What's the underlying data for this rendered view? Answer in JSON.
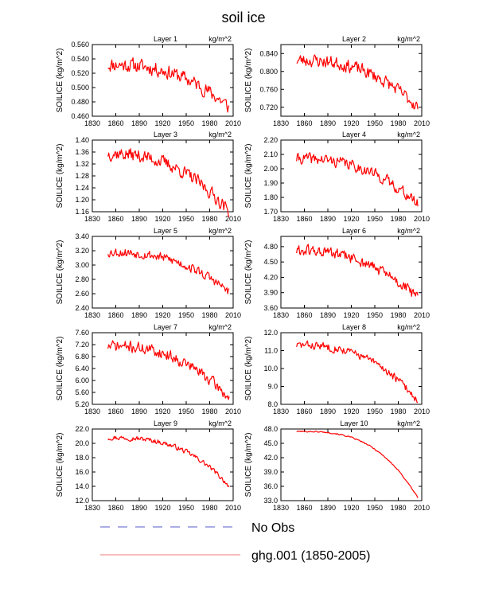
{
  "title": "soil ice",
  "colors": {
    "model": "#ff0000",
    "obs": "#5a5acd",
    "legend_model": "#f4a6a6",
    "axis": "#000000"
  },
  "legend": {
    "obs_label": "No Obs",
    "model_label": "ghg.001 (1850-2005)"
  },
  "chart_data": [
    {
      "type": "line",
      "panel": "Layer 1",
      "title": "Layer 1",
      "units": "kg/m^2",
      "ylabel": "SOILICE (kg/m^2)",
      "xlim": [
        1830,
        2010
      ],
      "xticks": [
        "1830",
        "1860",
        "1890",
        "1920",
        "1950",
        "1980",
        "2010"
      ],
      "ylim": [
        0.46,
        0.56
      ],
      "yticks": [
        "0.460",
        "0.480",
        "0.500",
        "0.520",
        "0.540",
        "0.560"
      ],
      "start": 0.532,
      "end": 0.472,
      "noise": 0.009,
      "curve": 2.5,
      "seed": 11
    },
    {
      "type": "line",
      "panel": "Layer 2",
      "title": "Layer 2",
      "units": "kg/m^2",
      "ylabel": "SOILICE (kg/m^2)",
      "xlim": [
        1830,
        2010
      ],
      "xticks": [
        "1830",
        "1860",
        "1890",
        "1920",
        "1950",
        "1980",
        "2010"
      ],
      "ylim": [
        0.7,
        0.86
      ],
      "yticks": [
        "0.720",
        "0.760",
        "0.800",
        "0.840"
      ],
      "start": 0.825,
      "end": 0.72,
      "noise": 0.013,
      "curve": 2.5,
      "seed": 23
    },
    {
      "type": "line",
      "panel": "Layer 3",
      "title": "Layer 3",
      "units": "kg/m^2",
      "ylabel": "SOILICE (kg/m^2)",
      "xlim": [
        1830,
        2010
      ],
      "xticks": [
        "1830",
        "1860",
        "1890",
        "1920",
        "1950",
        "1980",
        "2010"
      ],
      "ylim": [
        1.16,
        1.4
      ],
      "yticks": [
        "1.16",
        "1.20",
        "1.24",
        "1.28",
        "1.32",
        "1.36",
        "1.40"
      ],
      "start": 1.355,
      "end": 1.16,
      "noise": 0.02,
      "curve": 2.4,
      "seed": 37
    },
    {
      "type": "line",
      "panel": "Layer 4",
      "title": "Layer 4",
      "units": "kg/m^2",
      "ylabel": "SOILICE (kg/m^2)",
      "xlim": [
        1830,
        2010
      ],
      "xticks": [
        "1830",
        "1860",
        "1890",
        "1920",
        "1950",
        "1980",
        "2010"
      ],
      "ylim": [
        1.7,
        2.2
      ],
      "yticks": [
        "1.70",
        "1.80",
        "1.90",
        "2.00",
        "2.10",
        "2.20"
      ],
      "start": 2.07,
      "end": 1.75,
      "noise": 0.035,
      "curve": 2.5,
      "seed": 41
    },
    {
      "type": "line",
      "panel": "Layer 5",
      "title": "Layer 5",
      "units": "kg/m^2",
      "ylabel": "SOILICE (kg/m^2)",
      "xlim": [
        1830,
        2010
      ],
      "xticks": [
        "1830",
        "1860",
        "1890",
        "1920",
        "1950",
        "1980",
        "2010"
      ],
      "ylim": [
        2.4,
        3.4
      ],
      "yticks": [
        "2.40",
        "2.60",
        "2.80",
        "3.00",
        "3.20",
        "3.40"
      ],
      "start": 3.18,
      "end": 2.62,
      "noise": 0.06,
      "curve": 2.5,
      "seed": 53
    },
    {
      "type": "line",
      "panel": "Layer 6",
      "title": "Layer 6",
      "units": "kg/m^2",
      "ylabel": "SOILICE (kg/m^2)",
      "xlim": [
        1830,
        2010
      ],
      "xticks": [
        "1830",
        "1860",
        "1890",
        "1920",
        "1950",
        "1980",
        "2010"
      ],
      "ylim": [
        3.6,
        5.0
      ],
      "yticks": [
        "3.60",
        "3.90",
        "4.20",
        "4.50",
        "4.80"
      ],
      "start": 4.72,
      "end": 3.8,
      "noise": 0.1,
      "curve": 2.3,
      "seed": 61
    },
    {
      "type": "line",
      "panel": "Layer 7",
      "title": "Layer 7",
      "units": "kg/m^2",
      "ylabel": "SOILICE (kg/m^2)",
      "xlim": [
        1830,
        2010
      ],
      "xticks": [
        "1830",
        "1860",
        "1890",
        "1920",
        "1950",
        "1980",
        "2010"
      ],
      "ylim": [
        5.2,
        7.6
      ],
      "yticks": [
        "5.20",
        "5.60",
        "6.00",
        "6.40",
        "6.80",
        "7.20",
        "7.60"
      ],
      "start": 7.15,
      "end": 5.4,
      "noise": 0.17,
      "curve": 2.5,
      "seed": 71
    },
    {
      "type": "line",
      "panel": "Layer 8",
      "title": "Layer 8",
      "units": "kg/m^2",
      "ylabel": "SOILICE (kg/m^2)",
      "xlim": [
        1830,
        2010
      ],
      "xticks": [
        "1830",
        "1860",
        "1890",
        "1920",
        "1950",
        "1980",
        "2010"
      ],
      "ylim": [
        8.0,
        12.0
      ],
      "yticks": [
        "8.0",
        "9.0",
        "10.0",
        "11.0",
        "12.0"
      ],
      "start": 11.3,
      "end": 8.2,
      "noise": 0.2,
      "curve": 2.6,
      "seed": 83
    },
    {
      "type": "line",
      "panel": "Layer 9",
      "title": "Layer 9",
      "units": "kg/m^2",
      "ylabel": "SOILICE (kg/m^2)",
      "xlim": [
        1830,
        2010
      ],
      "xticks": [
        "1830",
        "1860",
        "1890",
        "1920",
        "1950",
        "1980",
        "2010"
      ],
      "ylim": [
        12.0,
        22.0
      ],
      "yticks": [
        "12.0",
        "14.0",
        "16.0",
        "18.0",
        "20.0",
        "22.0"
      ],
      "start": 20.8,
      "end": 14.0,
      "noise": 0.3,
      "curve": 2.8,
      "seed": 97
    },
    {
      "type": "line",
      "panel": "Layer 10",
      "title": "Layer 10",
      "units": "kg/m^2",
      "ylabel": "SOILICE (kg/m^2)",
      "xlim": [
        1830,
        2010
      ],
      "xticks": [
        "1830",
        "1860",
        "1890",
        "1920",
        "1950",
        "1980",
        "2010"
      ],
      "ylim": [
        33.0,
        48.0
      ],
      "yticks": [
        "33.0",
        "36.0",
        "39.0",
        "42.0",
        "45.0",
        "48.0"
      ],
      "start": 47.5,
      "end": 33.6,
      "noise": 0.12,
      "curve": 3.0,
      "seed": 101
    }
  ]
}
